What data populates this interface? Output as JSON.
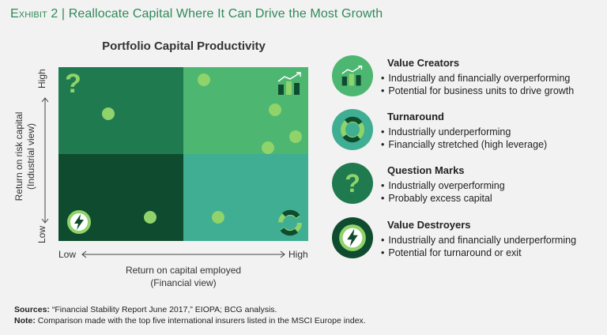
{
  "exhibit": {
    "label": "Exhibit 2",
    "separator": " | ",
    "title": "Reallocate Capital Where It Can Drive the Most Growth"
  },
  "matrix": {
    "title": "Portfolio Capital Productivity",
    "y_axis": {
      "label_line1": "Return on risk capital",
      "label_line2": "(Industrial view)",
      "high": "High",
      "low": "Low"
    },
    "x_axis": {
      "label_line1": "Return on capital employed",
      "label_line2": "(Financial view)",
      "low": "Low",
      "high": "High"
    },
    "quadrants": [
      {
        "name": "Question Marks",
        "position": "top-left",
        "color": "#1f7a50",
        "icon": "question-mark-icon"
      },
      {
        "name": "Value Creators",
        "position": "top-right",
        "color": "#4db772",
        "icon": "bar-chart-growth-icon"
      },
      {
        "name": "Value Destroyers",
        "position": "bottom-left",
        "color": "#0f4b2e",
        "icon": "lightning-bolt-icon"
      },
      {
        "name": "Turnaround",
        "position": "bottom-right",
        "color": "#3fae92",
        "icon": "cycle-arrows-icon"
      }
    ],
    "dot_color": "#8fd36a"
  },
  "legend": [
    {
      "title": "Value Creators",
      "icon": "bar-chart-growth-icon",
      "color": "#4db772",
      "bullets": [
        "Industrially and financially overperforming",
        "Potential for business units to drive growth"
      ]
    },
    {
      "title": "Turnaround",
      "icon": "cycle-arrows-icon",
      "color": "#3fae92",
      "bullets": [
        "Industrially underperforming",
        "Financially stretched (high leverage)"
      ]
    },
    {
      "title": "Question Marks",
      "icon": "question-mark-icon",
      "color": "#1f7a50",
      "bullets": [
        "Industrially overperforming",
        "Probably excess capital"
      ]
    },
    {
      "title": "Value Destroyers",
      "icon": "lightning-bolt-icon",
      "color": "#0f4b2e",
      "bullets": [
        "Industrially and financially underperforming",
        "Potential for turnaround or exit"
      ]
    }
  ],
  "footer": {
    "sources_label": "Sources:",
    "sources_text": "“Financial Stability Report June 2017,” EIOPA; BCG analysis.",
    "note_label": "Note:",
    "note_text": "Comparison made with the top five international insurers listed in the MSCI Europe index."
  }
}
